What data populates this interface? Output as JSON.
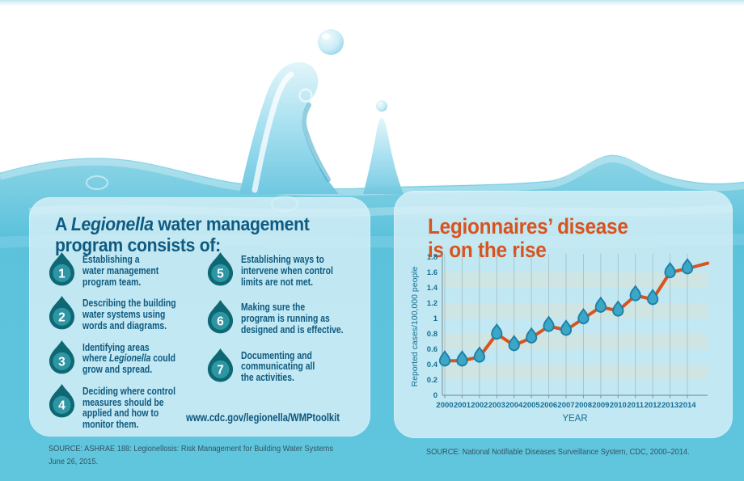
{
  "colors": {
    "heading_blue": "#0f5a80",
    "accent_orange": "#d8541f",
    "drop_dark_teal": "#0e6874",
    "drop_inner_teal": "#2e95a3",
    "marker_fill": "#3ba6c6",
    "marker_stroke": "#1d7fa6",
    "water_teal": "#5cc2dc",
    "panel_light_blue": "rgba(222,242,249,0.78)",
    "axis_text_blue": "#156f94",
    "source_text": "#33535d"
  },
  "left_panel": {
    "heading": "A *Legionella* water management\nprogram consists of:",
    "items": [
      {
        "number": "1",
        "column": 1,
        "lines": [
          "Establishing a",
          "water management",
          "program team."
        ]
      },
      {
        "number": "2",
        "column": 1,
        "lines": [
          "Describing the building",
          "water systems using",
          "words and diagrams."
        ]
      },
      {
        "number": "3",
        "column": 1,
        "lines": [
          "Identifying areas",
          "where *Legionella* could",
          "grow and spread."
        ]
      },
      {
        "number": "4",
        "column": 1,
        "lines": [
          "Deciding where control",
          "measures should be",
          "applied and how to",
          "monitor them."
        ]
      },
      {
        "number": "5",
        "column": 2,
        "lines": [
          "Establishing ways to",
          "intervene when control",
          "limits are not met."
        ]
      },
      {
        "number": "6",
        "column": 2,
        "lines": [
          "Making sure the",
          "program is running as",
          "designed and is effective."
        ]
      },
      {
        "number": "7",
        "column": 2,
        "lines": [
          "Documenting and",
          "communicating all",
          "the activities."
        ]
      }
    ],
    "url": "www.cdc.gov/legionella/WMPtoolkit",
    "source_line1": "SOURCE: ASHRAE 188: Legionellosis: Risk Management for Building Water Systems",
    "source_line2": "June 26, 2015."
  },
  "right_panel": {
    "title_line1": "Legionnaires’ disease",
    "title_line2": "is on the rise",
    "source": "SOURCE: National Notifiable Diseases Surveillance System, CDC, 2000–2014."
  },
  "chart_data": {
    "type": "line",
    "title": "Legionnaires' disease is on the rise",
    "x_categories": [
      "2000",
      "2001",
      "2002",
      "2003",
      "2004",
      "2005",
      "2006",
      "2007",
      "2008",
      "2009",
      "2010",
      "2011",
      "2012",
      "2013",
      "2014"
    ],
    "values": [
      0.45,
      0.45,
      0.5,
      0.8,
      0.65,
      0.75,
      0.9,
      0.85,
      1.0,
      1.15,
      1.1,
      1.3,
      1.25,
      1.6,
      1.65
    ],
    "trailing_edge_value": 1.72,
    "xlabel": "YEAR",
    "ylabel": "Reported cases/100,000 people",
    "ylim": [
      0,
      1.8
    ],
    "ytick_step": 0.2,
    "ytick_labels": [
      "0",
      "0.2",
      "0.4",
      "0.6",
      "0.8",
      "1",
      "1.2",
      "1.4",
      "1.6",
      "1.8"
    ],
    "band_ranges": [
      [
        0.2,
        0.4
      ],
      [
        0.6,
        0.8
      ],
      [
        1.0,
        1.2
      ],
      [
        1.4,
        1.6
      ]
    ],
    "band_color": "#d8e1d7",
    "grid": "vertical line per year; shaded horizontal bands",
    "legend_position": "none",
    "line_color": "#d8541f",
    "marker": "water-drop",
    "marker_fill": "#3ba6c6",
    "marker_stroke": "#1d7fa6"
  }
}
